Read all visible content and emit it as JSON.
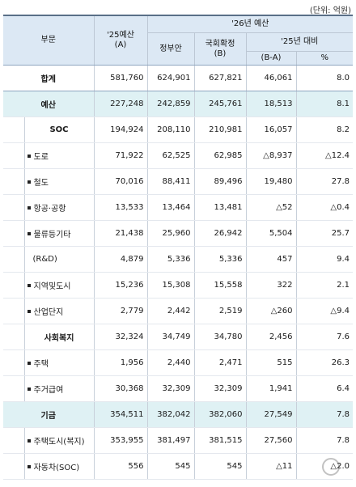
{
  "unit_note": "(단위: 억원)",
  "header": {
    "sector": "부문",
    "budget25": "'25예산",
    "budget25_sub": "(A)",
    "budget26": "'26년 예산",
    "gov": "정부안",
    "assembly": "국회확정",
    "assembly_sub": "(B)",
    "vs25": "'25년 대비",
    "diff": "(B-A)",
    "pct": "%"
  },
  "rows": [
    {
      "label": "합계",
      "type": "total",
      "a": "581,760",
      "gov": "624,901",
      "b": "627,821",
      "diff": "46,061",
      "pct": "8.0"
    },
    {
      "label": "예산",
      "type": "shade",
      "a": "227,248",
      "gov": "242,859",
      "b": "245,761",
      "diff": "18,513",
      "pct": "8.1"
    },
    {
      "label": "SOC",
      "type": "sub",
      "a": "194,924",
      "gov": "208,110",
      "b": "210,981",
      "diff": "16,057",
      "pct": "8.2"
    },
    {
      "label": "도로",
      "type": "bullet",
      "a": "71,922",
      "gov": "62,525",
      "b": "62,985",
      "diff": "△8,937",
      "pct": "△12.4"
    },
    {
      "label": "철도",
      "type": "bullet",
      "a": "70,016",
      "gov": "88,411",
      "b": "89,496",
      "diff": "19,480",
      "pct": "27.8"
    },
    {
      "label": "항공·공항",
      "type": "bullet",
      "a": "13,533",
      "gov": "13,464",
      "b": "13,481",
      "diff": "△52",
      "pct": "△0.4"
    },
    {
      "label": "물류등기타",
      "type": "bullet",
      "a": "21,438",
      "gov": "25,960",
      "b": "26,942",
      "diff": "5,504",
      "pct": "25.7"
    },
    {
      "label": "(R&D)",
      "type": "indent",
      "a": "4,879",
      "gov": "5,336",
      "b": "5,336",
      "diff": "457",
      "pct": "9.4"
    },
    {
      "label": "지역및도시",
      "type": "bullet",
      "a": "15,236",
      "gov": "15,308",
      "b": "15,558",
      "diff": "322",
      "pct": "2.1"
    },
    {
      "label": "산업단지",
      "type": "bullet",
      "a": "2,779",
      "gov": "2,442",
      "b": "2,519",
      "diff": "△260",
      "pct": "△9.4"
    },
    {
      "label": "사회복지",
      "type": "sub",
      "a": "32,324",
      "gov": "34,749",
      "b": "34,780",
      "diff": "2,456",
      "pct": "7.6"
    },
    {
      "label": "주택",
      "type": "bullet",
      "a": "1,956",
      "gov": "2,440",
      "b": "2,471",
      "diff": "515",
      "pct": "26.3"
    },
    {
      "label": "주거급여",
      "type": "bullet",
      "a": "30,368",
      "gov": "32,309",
      "b": "32,309",
      "diff": "1,941",
      "pct": "6.4"
    },
    {
      "label": "기금",
      "type": "shade",
      "a": "354,511",
      "gov": "382,042",
      "b": "382,060",
      "diff": "27,549",
      "pct": "7.8"
    },
    {
      "label": "주택도시(복지)",
      "type": "bullet",
      "a": "353,955",
      "gov": "381,497",
      "b": "381,515",
      "diff": "27,560",
      "pct": "7.8"
    },
    {
      "label": "자동차(SOC)",
      "type": "bullet",
      "a": "556",
      "gov": "545",
      "b": "545",
      "diff": "△11",
      "pct": "△2.0"
    }
  ]
}
